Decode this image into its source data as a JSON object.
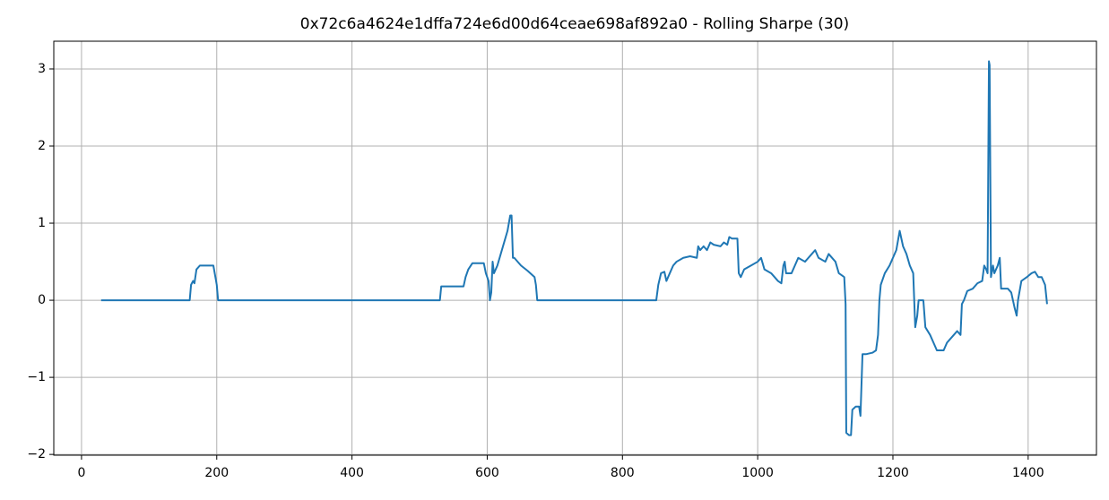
{
  "chart_data": {
    "type": "line",
    "title": "0x72c6a4624e1dffa724e6d00d64ceae698af892a0 - Rolling Sharpe (30)",
    "color": "#1f77b4",
    "grid": true,
    "xlim": [
      -41,
      1501
    ],
    "ylim": [
      -2.01,
      3.36
    ],
    "xticks": [
      0,
      200,
      400,
      600,
      800,
      1000,
      1200,
      1400
    ],
    "yticks": [
      {
        "value": -2,
        "label": "−2"
      },
      {
        "value": -1,
        "label": "−1"
      },
      0,
      1,
      2,
      3
    ],
    "x": [
      29,
      160,
      162,
      165,
      167,
      170,
      175,
      180,
      195,
      198,
      200,
      202,
      530,
      532,
      565,
      568,
      572,
      578,
      595,
      598,
      602,
      604,
      606,
      608,
      610,
      615,
      620,
      630,
      634,
      636,
      638,
      640,
      650,
      660,
      670,
      672,
      674,
      850,
      853,
      857,
      862,
      865,
      870,
      875,
      880,
      890,
      900,
      910,
      912,
      915,
      920,
      925,
      930,
      935,
      945,
      950,
      955,
      958,
      962,
      970,
      972,
      975,
      980,
      990,
      1000,
      1005,
      1010,
      1020,
      1030,
      1035,
      1038,
      1040,
      1042,
      1050,
      1055,
      1060,
      1070,
      1075,
      1080,
      1085,
      1090,
      1100,
      1105,
      1115,
      1120,
      1125,
      1128,
      1130,
      1131,
      1135,
      1138,
      1140,
      1145,
      1150,
      1152,
      1155,
      1160,
      1170,
      1175,
      1178,
      1180,
      1182,
      1188,
      1195,
      1200,
      1205,
      1210,
      1215,
      1220,
      1225,
      1230,
      1233,
      1236,
      1238,
      1245,
      1248,
      1255,
      1260,
      1265,
      1275,
      1280,
      1290,
      1295,
      1300,
      1302,
      1305,
      1310,
      1318,
      1325,
      1332,
      1335,
      1338,
      1340,
      1342,
      1343,
      1345,
      1348,
      1350,
      1355,
      1358,
      1360,
      1370,
      1375,
      1380,
      1383,
      1385,
      1390,
      1398,
      1405,
      1410,
      1415,
      1420,
      1425,
      1428
    ],
    "values": [
      0,
      0,
      0.2,
      0.25,
      0.22,
      0.4,
      0.45,
      0.45,
      0.45,
      0.3,
      0.2,
      0,
      0,
      0.18,
      0.18,
      0.3,
      0.4,
      0.48,
      0.48,
      0.35,
      0.25,
      0,
      0.1,
      0.5,
      0.35,
      0.45,
      0.6,
      0.9,
      1.1,
      1.1,
      0.55,
      0.55,
      0.45,
      0.38,
      0.3,
      0.2,
      0,
      0,
      0.2,
      0.35,
      0.37,
      0.25,
      0.35,
      0.45,
      0.5,
      0.55,
      0.57,
      0.55,
      0.7,
      0.65,
      0.7,
      0.65,
      0.75,
      0.72,
      0.7,
      0.75,
      0.72,
      0.82,
      0.8,
      0.8,
      0.35,
      0.3,
      0.4,
      0.45,
      0.5,
      0.55,
      0.4,
      0.35,
      0.25,
      0.22,
      0.45,
      0.5,
      0.35,
      0.35,
      0.45,
      0.55,
      0.5,
      0.55,
      0.6,
      0.65,
      0.55,
      0.5,
      0.6,
      0.5,
      0.35,
      0.32,
      0.3,
      -0.05,
      -1.72,
      -1.75,
      -1.75,
      -1.42,
      -1.38,
      -1.38,
      -1.5,
      -0.7,
      -0.7,
      -0.68,
      -0.65,
      -0.45,
      0,
      0.2,
      0.35,
      0.45,
      0.55,
      0.65,
      0.9,
      0.7,
      0.6,
      0.45,
      0.35,
      -0.35,
      -0.2,
      0,
      0,
      -0.35,
      -0.45,
      -0.55,
      -0.65,
      -0.65,
      -0.55,
      -0.45,
      -0.4,
      -0.45,
      -0.05,
      0,
      0.12,
      0.15,
      0.22,
      0.25,
      0.45,
      0.4,
      0.35,
      3.1,
      3.05,
      0.3,
      0.45,
      0.35,
      0.45,
      0.55,
      0.15,
      0.15,
      0.1,
      -0.1,
      -0.2,
      0,
      0.25,
      0.3,
      0.35,
      0.37,
      0.3,
      0.3,
      0.2,
      -0.05
    ]
  }
}
